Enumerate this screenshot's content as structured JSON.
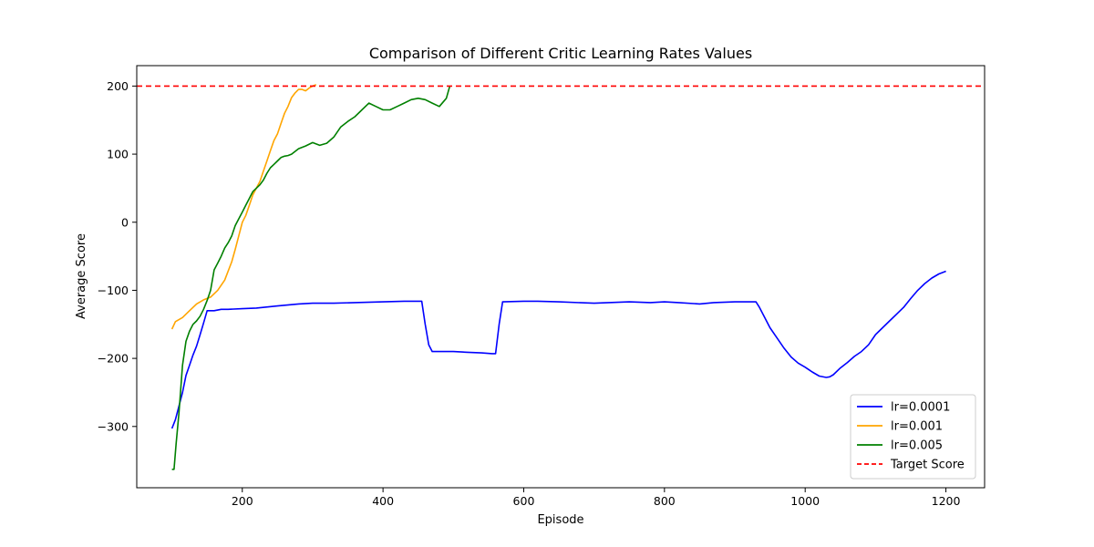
{
  "chart_data": {
    "type": "line",
    "title": "Comparison of Different Critic Learning Rates Values",
    "xlabel": "Episode",
    "ylabel": "Average Score",
    "xlim": [
      50,
      1255
    ],
    "ylim": [
      -390,
      230
    ],
    "xticks": [
      200,
      400,
      600,
      800,
      1000,
      1200
    ],
    "yticks": [
      -300,
      -200,
      -100,
      0,
      100,
      200
    ],
    "grid": false,
    "legend_position": "lower-right",
    "series": [
      {
        "name": "lr=0.0001",
        "color": "#0000ff",
        "style": "solid",
        "x": [
          100,
          105,
          110,
          115,
          120,
          125,
          130,
          135,
          140,
          145,
          150,
          160,
          170,
          180,
          200,
          220,
          250,
          280,
          300,
          330,
          360,
          400,
          430,
          455,
          460,
          465,
          470,
          480,
          500,
          520,
          540,
          555,
          560,
          565,
          570,
          600,
          620,
          650,
          700,
          750,
          780,
          800,
          820,
          850,
          870,
          900,
          930,
          935,
          940,
          950,
          960,
          970,
          980,
          990,
          1000,
          1010,
          1020,
          1030,
          1035,
          1040,
          1050,
          1060,
          1070,
          1080,
          1090,
          1100,
          1110,
          1120,
          1130,
          1140,
          1150,
          1160,
          1170,
          1180,
          1190,
          1200
        ],
        "y": [
          -303,
          -290,
          -270,
          -250,
          -225,
          -210,
          -195,
          -182,
          -165,
          -148,
          -130,
          -130,
          -128,
          -128,
          -127,
          -126,
          -123,
          -120,
          -119,
          -119,
          -118,
          -117,
          -116,
          -116,
          -150,
          -180,
          -190,
          -190,
          -190,
          -191,
          -192,
          -193,
          -193,
          -150,
          -117,
          -116,
          -116,
          -117,
          -119,
          -117,
          -118,
          -117,
          -118,
          -120,
          -118,
          -117,
          -117,
          -125,
          -135,
          -155,
          -170,
          -185,
          -198,
          -207,
          -213,
          -220,
          -226,
          -228,
          -227,
          -224,
          -214,
          -206,
          -197,
          -190,
          -180,
          -165,
          -155,
          -145,
          -135,
          -125,
          -112,
          -100,
          -90,
          -82,
          -76,
          -72
        ]
      },
      {
        "name": "lr=0.001",
        "color": "#ffa500",
        "style": "solid",
        "x": [
          100,
          105,
          115,
          125,
          135,
          145,
          155,
          165,
          175,
          185,
          190,
          195,
          200,
          205,
          210,
          215,
          220,
          225,
          230,
          235,
          240,
          245,
          250,
          255,
          260,
          265,
          270,
          275,
          280,
          285,
          290,
          295,
          300,
          305
        ],
        "y": [
          -157,
          -146,
          -140,
          -130,
          -120,
          -114,
          -110,
          -100,
          -85,
          -58,
          -40,
          -20,
          0,
          10,
          25,
          40,
          50,
          60,
          75,
          90,
          105,
          120,
          130,
          145,
          160,
          170,
          183,
          190,
          195,
          195,
          193,
          197,
          200,
          202
        ]
      },
      {
        "name": "lr=0.005",
        "color": "#008000",
        "style": "solid",
        "x": [
          100,
          103,
          106,
          110,
          115,
          120,
          125,
          130,
          135,
          140,
          145,
          150,
          155,
          160,
          165,
          170,
          175,
          180,
          185,
          190,
          195,
          200,
          205,
          210,
          215,
          220,
          225,
          230,
          235,
          240,
          245,
          250,
          255,
          260,
          265,
          270,
          280,
          290,
          300,
          310,
          320,
          330,
          340,
          350,
          360,
          370,
          380,
          390,
          400,
          410,
          420,
          430,
          440,
          450,
          460,
          470,
          480,
          490,
          495
        ],
        "y": [
          -363,
          -363,
          -325,
          -280,
          -210,
          -175,
          -160,
          -150,
          -145,
          -138,
          -128,
          -115,
          -100,
          -70,
          -60,
          -50,
          -38,
          -30,
          -20,
          -5,
          5,
          15,
          25,
          35,
          45,
          50,
          55,
          62,
          72,
          80,
          85,
          90,
          95,
          97,
          98,
          100,
          108,
          112,
          117,
          113,
          116,
          125,
          140,
          148,
          155,
          165,
          175,
          170,
          165,
          165,
          170,
          175,
          180,
          182,
          180,
          175,
          170,
          182,
          200
        ]
      },
      {
        "name": "Target Score",
        "color": "#ff0000",
        "style": "dashed",
        "x": [
          50,
          1255
        ],
        "y": [
          200,
          200
        ]
      }
    ]
  }
}
